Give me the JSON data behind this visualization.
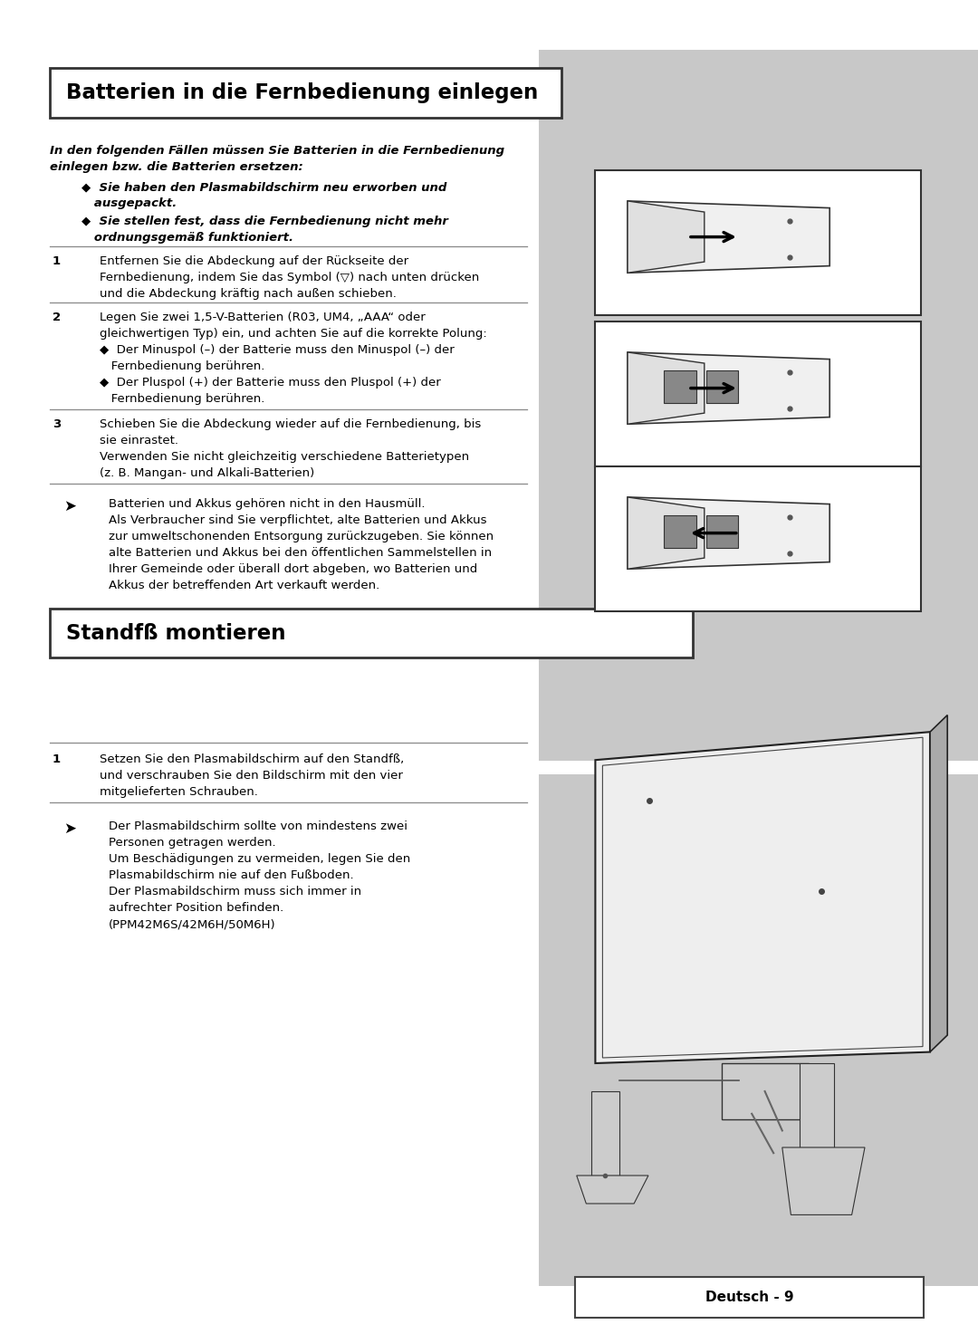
{
  "page_bg": "#ffffff",
  "gray_color": "#c8c8c8",
  "border_color": "#555555",
  "text_color": "#000000",
  "title1": "Batterien in die Fernbedienung einlegen",
  "title2": "Standfß montieren",
  "footer_text": "Deutsch - 9",
  "intro_bold_line1": "In den folgenden Fällen müssen Sie Batterien in die Fernbedienung",
  "intro_bold_line2": "einlegen bzw. die Batterien ersetzen:",
  "bullet1a": "◆  Sie haben den Plasmabildschirm neu erworben und",
  "bullet1b": "   ausgepackt.",
  "bullet2a": "◆  Sie stellen fest, dass die Fernbedienung nicht mehr",
  "bullet2b": "   ordnungsgemäß funktioniert.",
  "step1_num": "1",
  "step1_l1": "Entfernen Sie die Abdeckung auf der Rückseite der",
  "step1_l2": "Fernbedienung, indem Sie das Symbol (▽) nach unten drücken",
  "step1_l3": "und die Abdeckung kräftig nach außen schieben.",
  "step2_num": "2",
  "step2_l1": "Legen Sie zwei 1,5-V-Batterien (R03, UM4, „AAA“ oder",
  "step2_l2": "gleichwertigen Typ) ein, und achten Sie auf die korrekte Polung:",
  "step2_l3": "◆  Der Minuspol (–) der Batterie muss den Minuspol (–) der",
  "step2_l4": "   Fernbedienung berühren.",
  "step2_l5": "◆  Der Pluspol (+) der Batterie muss den Pluspol (+) der",
  "step2_l6": "   Fernbedienung berühren.",
  "step3_num": "3",
  "step3_l1": "Schieben Sie die Abdeckung wieder auf die Fernbedienung, bis",
  "step3_l2": "sie einrastet.",
  "step3_l3": "Verwenden Sie nicht gleichzeitig verschiedene Batterietypen",
  "step3_l4": "(z. B. Mangan- und Alkali-Batterien)",
  "note1_arrow": "➤",
  "note1_l1": "Batterien und Akkus gehören nicht in den Hausmüll.",
  "note1_l2": "Als Verbraucher sind Sie verpflichtet, alte Batterien und Akkus",
  "note1_l3": "zur umweltschonenden Entsorgung zurückzugeben. Sie können",
  "note1_l4": "alte Batterien und Akkus bei den öffentlichen Sammelstellen in",
  "note1_l5": "Ihrer Gemeinde oder überall dort abgeben, wo Batterien und",
  "note1_l6": "Akkus der betreffenden Art verkauft werden.",
  "s2_step1_num": "1",
  "s2_step1_l1": "Setzen Sie den Plasmabildschirm auf den Standfß,",
  "s2_step1_l2": "und verschrauben Sie den Bildschirm mit den vier",
  "s2_step1_l3": "mitgelieferten Schrauben.",
  "s2_note_arrow": "➤",
  "s2_note_l1": "Der Plasmabildschirm sollte von mindestens zwei",
  "s2_note_l2": "Personen getragen werden.",
  "s2_note_l3": "Um Beschädigungen zu vermeiden, legen Sie den",
  "s2_note_l4": "Plasmabildschirm nie auf den Fußboden.",
  "s2_note_l5": "Der Plasmabildschirm muss sich immer in",
  "s2_note_l6": "aufrechter Position befinden.",
  "s2_note_l7": "(PPM42M6S/42M6H/50M6H)"
}
